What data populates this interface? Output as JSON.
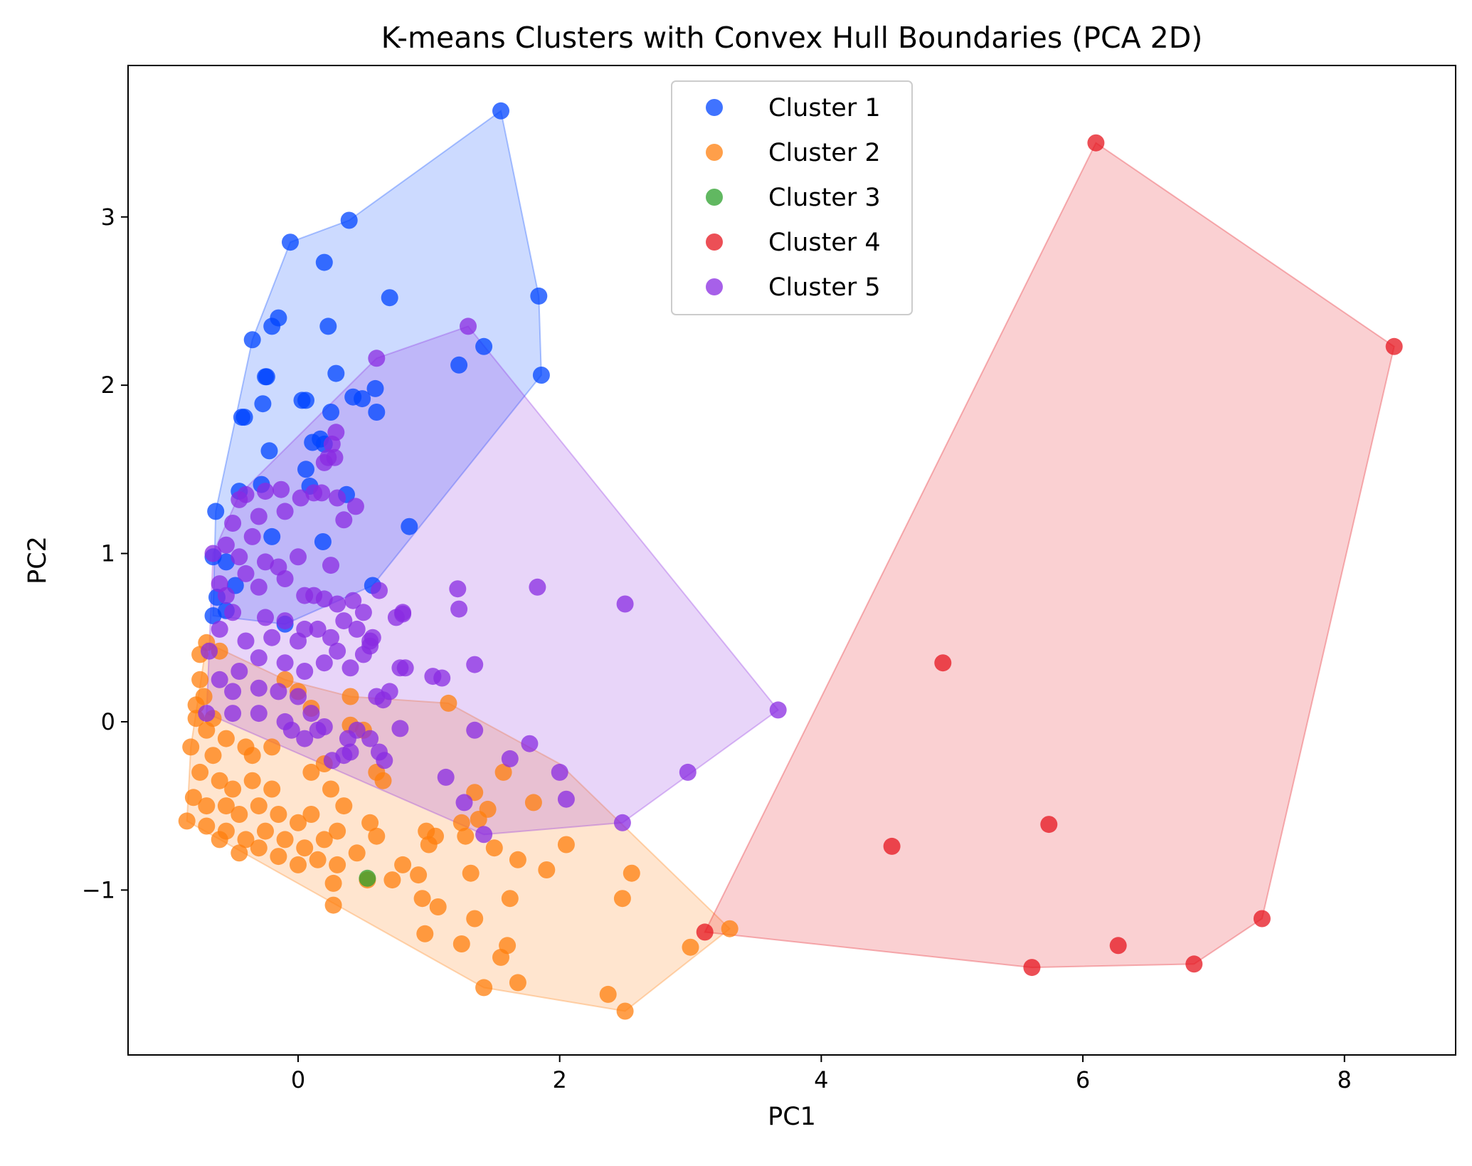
{
  "chart_data": {
    "type": "scatter",
    "title": "K-means Clusters with Convex Hull Boundaries (PCA 2D)",
    "xlabel": "PC1",
    "ylabel": "PC2",
    "xlim": [
      -1.3,
      8.85
    ],
    "ylim": [
      -1.98,
      3.9
    ],
    "x_ticks": [
      0,
      2,
      4,
      6,
      8
    ],
    "y_ticks": [
      -1,
      0,
      1,
      2,
      3
    ],
    "x_tick_labels": [
      "0",
      "2",
      "4",
      "6",
      "8"
    ],
    "y_tick_labels": [
      "−1",
      "0",
      "1",
      "2",
      "3"
    ],
    "grid": false,
    "legend_position": "top-center",
    "series": [
      {
        "name": "Cluster 1",
        "color": "#0044ff",
        "hull": [
          [
            1.55,
            3.63
          ],
          [
            1.84,
            2.53
          ],
          [
            1.86,
            2.06
          ],
          [
            0.57,
            0.81
          ],
          [
            -0.1,
            0.58
          ],
          [
            -0.65,
            0.63
          ],
          [
            -0.63,
            1.25
          ],
          [
            -0.35,
            2.27
          ],
          [
            -0.06,
            2.85
          ],
          [
            0.39,
            2.98
          ]
        ],
        "points": [
          [
            1.55,
            3.63
          ],
          [
            0.39,
            2.98
          ],
          [
            -0.06,
            2.85
          ],
          [
            0.2,
            2.73
          ],
          [
            0.7,
            2.52
          ],
          [
            1.84,
            2.53
          ],
          [
            -0.15,
            2.4
          ],
          [
            -0.2,
            2.35
          ],
          [
            0.23,
            2.35
          ],
          [
            -0.35,
            2.27
          ],
          [
            1.42,
            2.23
          ],
          [
            1.23,
            2.12
          ],
          [
            0.29,
            2.07
          ],
          [
            -0.25,
            2.05
          ],
          [
            1.86,
            2.06
          ],
          [
            0.59,
            1.98
          ],
          [
            -0.24,
            2.05
          ],
          [
            0.42,
            1.93
          ],
          [
            0.03,
            1.91
          ],
          [
            0.06,
            1.91
          ],
          [
            0.49,
            1.92
          ],
          [
            -0.27,
            1.89
          ],
          [
            0.25,
            1.84
          ],
          [
            0.6,
            1.84
          ],
          [
            -0.43,
            1.81
          ],
          [
            -0.41,
            1.81
          ],
          [
            0.17,
            1.68
          ],
          [
            0.2,
            1.65
          ],
          [
            0.11,
            1.66
          ],
          [
            -0.22,
            1.61
          ],
          [
            0.06,
            1.5
          ],
          [
            -0.45,
            1.37
          ],
          [
            0.37,
            1.35
          ],
          [
            0.09,
            1.4
          ],
          [
            -0.28,
            1.41
          ],
          [
            -0.63,
            1.25
          ],
          [
            -0.2,
            1.1
          ],
          [
            0.19,
            1.07
          ],
          [
            0.85,
            1.16
          ],
          [
            -0.65,
            0.98
          ],
          [
            -0.55,
            0.95
          ],
          [
            0.57,
            0.81
          ],
          [
            -0.62,
            0.74
          ],
          [
            -0.48,
            0.81
          ],
          [
            -0.65,
            0.63
          ],
          [
            -0.55,
            0.66
          ],
          [
            -0.1,
            0.58
          ]
        ]
      },
      {
        "name": "Cluster 2",
        "color": "#ff7f0e",
        "hull": [
          [
            3.3,
            -1.23
          ],
          [
            2.5,
            -1.72
          ],
          [
            1.42,
            -1.58
          ],
          [
            -0.85,
            -0.59
          ],
          [
            -0.82,
            -0.15
          ],
          [
            -0.7,
            0.47
          ],
          [
            -0.1,
            0.25
          ],
          [
            0.4,
            0.15
          ],
          [
            1.15,
            0.11
          ],
          [
            2.0,
            -0.25
          ]
        ],
        "points": [
          [
            -0.7,
            0.47
          ],
          [
            -0.75,
            0.4
          ],
          [
            -0.6,
            0.42
          ],
          [
            -0.75,
            0.25
          ],
          [
            -0.72,
            0.15
          ],
          [
            -0.78,
            0.1
          ],
          [
            -0.65,
            0.02
          ],
          [
            -0.78,
            0.02
          ],
          [
            -0.7,
            -0.05
          ],
          [
            -0.55,
            -0.1
          ],
          [
            -0.82,
            -0.15
          ],
          [
            -0.65,
            -0.2
          ],
          [
            -0.4,
            -0.15
          ],
          [
            -0.35,
            -0.2
          ],
          [
            -0.2,
            -0.15
          ],
          [
            -0.75,
            -0.3
          ],
          [
            -0.6,
            -0.35
          ],
          [
            -0.5,
            -0.4
          ],
          [
            -0.35,
            -0.35
          ],
          [
            -0.2,
            -0.4
          ],
          [
            0.1,
            -0.3
          ],
          [
            0.2,
            -0.25
          ],
          [
            -0.8,
            -0.45
          ],
          [
            -0.7,
            -0.5
          ],
          [
            -0.55,
            -0.5
          ],
          [
            -0.45,
            -0.55
          ],
          [
            -0.3,
            -0.5
          ],
          [
            -0.15,
            -0.55
          ],
          [
            0.0,
            -0.6
          ],
          [
            0.1,
            -0.55
          ],
          [
            0.25,
            -0.4
          ],
          [
            0.35,
            -0.5
          ],
          [
            -0.85,
            -0.59
          ],
          [
            -0.7,
            -0.62
          ],
          [
            -0.55,
            -0.65
          ],
          [
            -0.4,
            -0.7
          ],
          [
            -0.25,
            -0.65
          ],
          [
            -0.1,
            -0.7
          ],
          [
            0.05,
            -0.75
          ],
          [
            0.2,
            -0.7
          ],
          [
            0.3,
            -0.65
          ],
          [
            -0.6,
            -0.7
          ],
          [
            -0.45,
            -0.78
          ],
          [
            -0.3,
            -0.75
          ],
          [
            -0.15,
            -0.8
          ],
          [
            0.0,
            -0.85
          ],
          [
            0.15,
            -0.82
          ],
          [
            0.3,
            -0.85
          ],
          [
            0.45,
            -0.78
          ],
          [
            0.55,
            -0.6
          ],
          [
            0.6,
            -0.68
          ],
          [
            0.6,
            -0.3
          ],
          [
            0.65,
            -0.35
          ],
          [
            0.4,
            0.15
          ],
          [
            0.4,
            -0.02
          ],
          [
            0.5,
            -0.05
          ],
          [
            -0.1,
            0.25
          ],
          [
            0.0,
            0.18
          ],
          [
            0.1,
            0.08
          ],
          [
            0.72,
            -0.94
          ],
          [
            0.8,
            -0.85
          ],
          [
            0.92,
            -0.91
          ],
          [
            0.95,
            -1.05
          ],
          [
            1.0,
            -0.73
          ],
          [
            0.98,
            -0.65
          ],
          [
            1.05,
            -0.68
          ],
          [
            1.15,
            0.11
          ],
          [
            1.07,
            -1.1
          ],
          [
            1.25,
            -0.6
          ],
          [
            1.28,
            -0.68
          ],
          [
            1.32,
            -0.9
          ],
          [
            1.35,
            -0.42
          ],
          [
            1.38,
            -0.58
          ],
          [
            1.45,
            -0.52
          ],
          [
            1.5,
            -0.75
          ],
          [
            1.57,
            -0.3
          ],
          [
            1.6,
            -1.33
          ],
          [
            1.62,
            -1.05
          ],
          [
            1.68,
            -0.82
          ],
          [
            1.8,
            -0.48
          ],
          [
            1.55,
            -1.4
          ],
          [
            1.42,
            -1.58
          ],
          [
            1.25,
            -1.32
          ],
          [
            1.35,
            -1.17
          ],
          [
            1.68,
            -1.55
          ],
          [
            0.97,
            -1.26
          ],
          [
            0.53,
            -0.94
          ],
          [
            0.27,
            -0.96
          ],
          [
            0.27,
            -1.09
          ],
          [
            1.9,
            -0.88
          ],
          [
            2.05,
            -0.73
          ],
          [
            2.37,
            -1.62
          ],
          [
            2.5,
            -1.72
          ],
          [
            2.55,
            -0.9
          ],
          [
            2.48,
            -1.05
          ],
          [
            3.0,
            -1.34
          ],
          [
            3.3,
            -1.23
          ]
        ]
      },
      {
        "name": "Cluster 3",
        "color": "#2ca02c",
        "hull": [],
        "points": [
          [
            0.53,
            -0.93
          ]
        ]
      },
      {
        "name": "Cluster 4",
        "color": "#e6141e",
        "hull": [
          [
            6.1,
            3.44
          ],
          [
            8.38,
            2.23
          ],
          [
            7.37,
            -1.17
          ],
          [
            6.85,
            -1.44
          ],
          [
            5.61,
            -1.46
          ],
          [
            3.11,
            -1.25
          ]
        ],
        "points": [
          [
            6.1,
            3.44
          ],
          [
            8.38,
            2.23
          ],
          [
            4.93,
            0.35
          ],
          [
            5.74,
            -0.61
          ],
          [
            4.54,
            -0.74
          ],
          [
            7.37,
            -1.17
          ],
          [
            6.27,
            -1.33
          ],
          [
            6.85,
            -1.44
          ],
          [
            5.61,
            -1.46
          ],
          [
            3.11,
            -1.25
          ]
        ]
      },
      {
        "name": "Cluster 5",
        "color": "#8a2be2",
        "hull": [
          [
            1.3,
            2.35
          ],
          [
            3.67,
            0.07
          ],
          [
            2.48,
            -0.6
          ],
          [
            1.42,
            -0.67
          ],
          [
            -0.7,
            0.05
          ],
          [
            -0.68,
            0.42
          ],
          [
            -0.65,
            1.0
          ],
          [
            -0.45,
            1.35
          ],
          [
            0.6,
            2.16
          ]
        ],
        "points": [
          [
            1.3,
            2.35
          ],
          [
            0.6,
            2.16
          ],
          [
            0.29,
            1.72
          ],
          [
            0.26,
            1.65
          ],
          [
            0.23,
            1.57
          ],
          [
            0.28,
            1.57
          ],
          [
            0.2,
            1.54
          ],
          [
            0.3,
            1.33
          ],
          [
            0.44,
            1.28
          ],
          [
            0.35,
            1.2
          ],
          [
            0.02,
            1.33
          ],
          [
            0.12,
            1.36
          ],
          [
            0.18,
            1.36
          ],
          [
            -0.13,
            1.38
          ],
          [
            -0.25,
            1.37
          ],
          [
            -0.4,
            1.35
          ],
          [
            -0.45,
            1.32
          ],
          [
            -0.1,
            1.25
          ],
          [
            -0.3,
            1.22
          ],
          [
            -0.5,
            1.18
          ],
          [
            -0.35,
            1.1
          ],
          [
            -0.55,
            1.05
          ],
          [
            -0.65,
            1.0
          ],
          [
            -0.45,
            0.98
          ],
          [
            -0.25,
            0.95
          ],
          [
            0.0,
            0.98
          ],
          [
            -0.15,
            0.92
          ],
          [
            0.25,
            0.93
          ],
          [
            -0.4,
            0.88
          ],
          [
            -0.6,
            0.82
          ],
          [
            -0.55,
            0.75
          ],
          [
            -0.3,
            0.8
          ],
          [
            -0.1,
            0.85
          ],
          [
            0.05,
            0.75
          ],
          [
            0.12,
            0.75
          ],
          [
            0.2,
            0.73
          ],
          [
            0.3,
            0.7
          ],
          [
            0.42,
            0.72
          ],
          [
            0.5,
            0.65
          ],
          [
            0.62,
            0.78
          ],
          [
            0.75,
            0.62
          ],
          [
            0.8,
            0.65
          ],
          [
            0.35,
            0.6
          ],
          [
            0.15,
            0.55
          ],
          [
            0.05,
            0.55
          ],
          [
            -0.1,
            0.6
          ],
          [
            -0.25,
            0.62
          ],
          [
            -0.5,
            0.65
          ],
          [
            -0.6,
            0.55
          ],
          [
            -0.68,
            0.42
          ],
          [
            -0.4,
            0.48
          ],
          [
            -0.2,
            0.5
          ],
          [
            0.0,
            0.48
          ],
          [
            0.25,
            0.5
          ],
          [
            0.45,
            0.55
          ],
          [
            0.57,
            0.5
          ],
          [
            0.55,
            0.45
          ],
          [
            0.5,
            0.4
          ],
          [
            0.3,
            0.42
          ],
          [
            0.2,
            0.35
          ],
          [
            0.05,
            0.3
          ],
          [
            -0.1,
            0.35
          ],
          [
            -0.3,
            0.38
          ],
          [
            -0.45,
            0.3
          ],
          [
            -0.6,
            0.25
          ],
          [
            -0.5,
            0.18
          ],
          [
            -0.3,
            0.2
          ],
          [
            -0.15,
            0.18
          ],
          [
            0.0,
            0.15
          ],
          [
            0.4,
            0.32
          ],
          [
            0.6,
            0.15
          ],
          [
            0.78,
            0.32
          ],
          [
            0.65,
            0.13
          ],
          [
            -0.7,
            0.05
          ],
          [
            -0.5,
            0.05
          ],
          [
            -0.3,
            0.05
          ],
          [
            -0.1,
            0.0
          ],
          [
            0.1,
            0.05
          ],
          [
            0.2,
            -0.03
          ],
          [
            0.15,
            -0.05
          ],
          [
            0.38,
            -0.1
          ],
          [
            0.45,
            -0.05
          ],
          [
            0.55,
            -0.1
          ],
          [
            0.78,
            -0.04
          ],
          [
            0.35,
            -0.2
          ],
          [
            0.4,
            -0.18
          ],
          [
            0.62,
            -0.18
          ],
          [
            0.66,
            -0.23
          ],
          [
            0.26,
            -0.23
          ],
          [
            0.05,
            -0.1
          ],
          [
            -0.05,
            -0.05
          ],
          [
            1.03,
            0.27
          ],
          [
            1.1,
            0.26
          ],
          [
            1.35,
            0.34
          ],
          [
            1.22,
            0.79
          ],
          [
            1.23,
            0.67
          ],
          [
            1.83,
            0.8
          ],
          [
            2.5,
            0.7
          ],
          [
            3.67,
            0.07
          ],
          [
            1.13,
            -0.33
          ],
          [
            1.27,
            -0.48
          ],
          [
            1.35,
            -0.05
          ],
          [
            1.62,
            -0.22
          ],
          [
            1.77,
            -0.13
          ],
          [
            2.0,
            -0.3
          ],
          [
            2.05,
            -0.46
          ],
          [
            2.48,
            -0.6
          ],
          [
            2.98,
            -0.3
          ],
          [
            1.42,
            -0.67
          ],
          [
            0.82,
            0.32
          ],
          [
            0.8,
            0.64
          ],
          [
            0.7,
            0.18
          ],
          [
            0.55,
            0.48
          ]
        ]
      }
    ]
  }
}
